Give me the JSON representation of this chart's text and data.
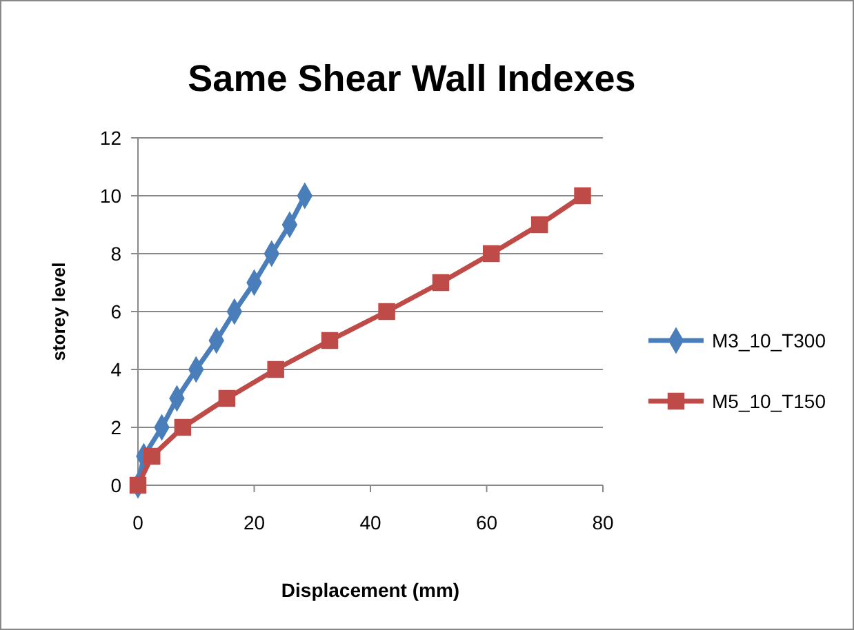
{
  "chart_data": {
    "type": "line",
    "title": "Same Shear Wall Indexes",
    "xlabel": "Displacement (mm)",
    "ylabel": "storey level",
    "xlim": [
      0,
      80
    ],
    "xticks": [
      0,
      20,
      40,
      60,
      80
    ],
    "ylim": [
      0,
      12
    ],
    "yticks": [
      0,
      2,
      4,
      6,
      8,
      10,
      12
    ],
    "grid": "y",
    "legend": "right",
    "line_style": "solid",
    "series": [
      {
        "name": "M3_10_T300",
        "color": "#4a7ebb",
        "marker": "diamond",
        "x": [
          0,
          1,
          4.1,
          6.7,
          10,
          13.5,
          16.6,
          20,
          23,
          26.1,
          28.7
        ],
        "values": [
          0,
          1,
          2,
          3,
          4,
          5,
          6,
          7,
          8,
          9,
          10
        ]
      },
      {
        "name": "M5_10_T150",
        "color": "#be4b48",
        "marker": "square",
        "x": [
          0,
          2.4,
          7.7,
          15.3,
          23.7,
          33,
          42.8,
          52.1,
          60.8,
          69.1,
          76.5
        ],
        "values": [
          0,
          1,
          2,
          3,
          4,
          5,
          6,
          7,
          8,
          9,
          10
        ]
      }
    ]
  }
}
